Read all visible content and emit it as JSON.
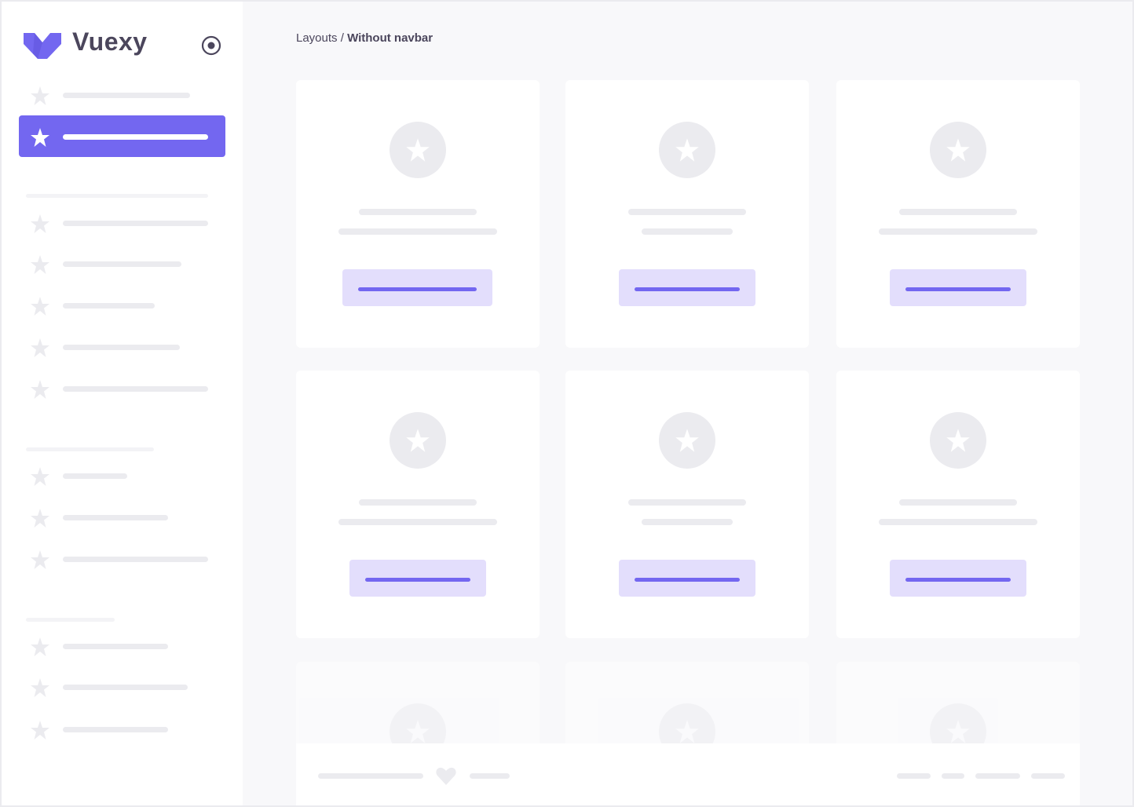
{
  "brand": {
    "name": "Vuexy",
    "logo_color": "#7367f0"
  },
  "breadcrumb": {
    "parent": "Layouts",
    "separator": " / ",
    "current": "Without navbar"
  },
  "colors": {
    "primary": "#7367f0",
    "primary_light": "#e3defc",
    "placeholder": "#ebebef",
    "background": "#f8f8fa"
  },
  "sidebar": {
    "toggle_icon": "radio-circle-icon",
    "active_index": 1,
    "item_icon": "star-icon"
  },
  "footer": {
    "icon": "heart-icon"
  }
}
